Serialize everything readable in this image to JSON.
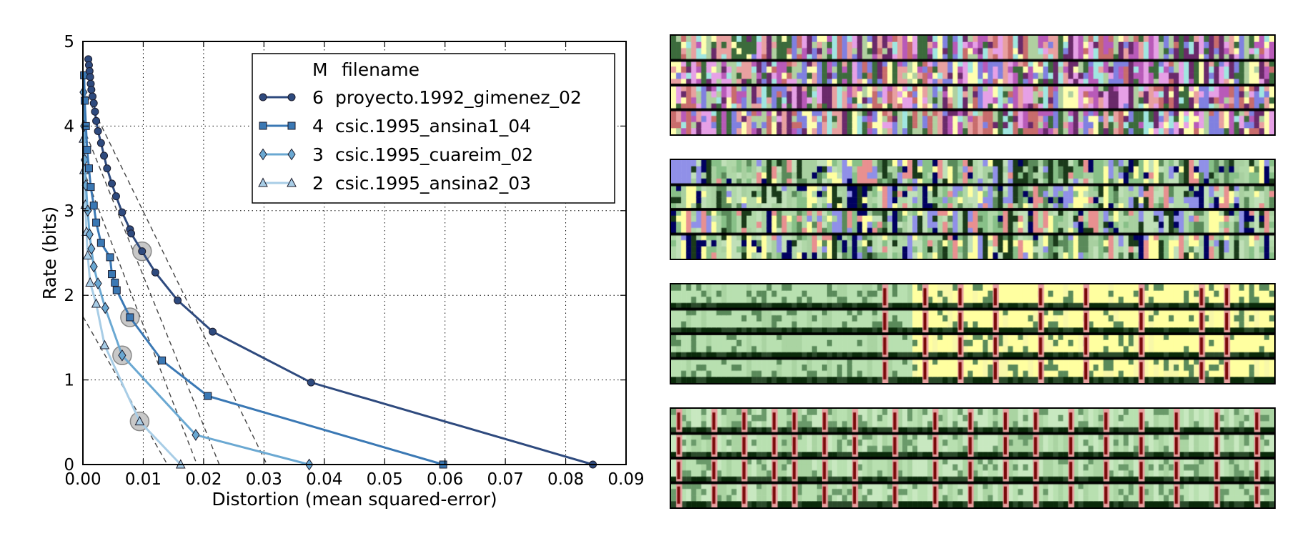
{
  "chart_data": {
    "type": "line",
    "xlabel": "Distortion (mean squared-error)",
    "ylabel": "Rate (bits)",
    "xlim": [
      0,
      0.09
    ],
    "ylim": [
      0,
      5
    ],
    "xticks": [
      "0.00",
      "0.01",
      "0.02",
      "0.03",
      "0.04",
      "0.05",
      "0.06",
      "0.07",
      "0.08",
      "0.09"
    ],
    "yticks": [
      "0",
      "1",
      "2",
      "3",
      "4",
      "5"
    ],
    "grid": true,
    "legend": {
      "placement": "top-right",
      "header_m": "M",
      "header_name": "filename"
    },
    "series": [
      {
        "name": "proyecto.1992_gimenez_02",
        "m": "6",
        "marker": "circle",
        "color": "#2e4a7e",
        "points": [
          [
            0.0009,
            4.79
          ],
          [
            0.001,
            4.72
          ],
          [
            0.0011,
            4.65
          ],
          [
            0.0012,
            4.58
          ],
          [
            0.0013,
            4.5
          ],
          [
            0.0014,
            4.43
          ],
          [
            0.0016,
            4.35
          ],
          [
            0.0018,
            4.27
          ],
          [
            0.002,
            4.17
          ],
          [
            0.0022,
            4.06
          ],
          [
            0.0025,
            3.94
          ],
          [
            0.003,
            3.8
          ],
          [
            0.0035,
            3.65
          ],
          [
            0.004,
            3.5
          ],
          [
            0.0048,
            3.32
          ],
          [
            0.0055,
            3.17
          ],
          [
            0.0065,
            2.98
          ],
          [
            0.0078,
            2.78
          ],
          [
            0.008,
            2.73
          ],
          [
            0.0098,
            2.52
          ],
          [
            0.012,
            2.27
          ],
          [
            0.0157,
            1.94
          ],
          [
            0.0215,
            1.57
          ],
          [
            0.0378,
            0.97
          ],
          [
            0.0845,
            0.0
          ]
        ]
      },
      {
        "name": "csic.1995_ansina1_04",
        "m": "4",
        "marker": "square",
        "color": "#3a78b4",
        "points": [
          [
            0.0002,
            4.6
          ],
          [
            0.0003,
            4.3
          ],
          [
            0.0005,
            4.0
          ],
          [
            0.0007,
            3.72
          ],
          [
            0.001,
            3.5
          ],
          [
            0.0013,
            3.28
          ],
          [
            0.0018,
            3.06
          ],
          [
            0.0022,
            2.86
          ],
          [
            0.003,
            2.62
          ],
          [
            0.0045,
            2.45
          ],
          [
            0.0048,
            2.25
          ],
          [
            0.0053,
            2.15
          ],
          [
            0.0056,
            2.06
          ],
          [
            0.0078,
            1.74
          ],
          [
            0.0131,
            1.23
          ],
          [
            0.0207,
            0.81
          ],
          [
            0.0597,
            0.0
          ]
        ]
      },
      {
        "name": "csic.1995_cuareim_02",
        "m": "3",
        "marker": "diamond",
        "color": "#6aa8d2",
        "points": [
          [
            0.0001,
            4.4
          ],
          [
            0.0002,
            4.0
          ],
          [
            0.0003,
            3.6
          ],
          [
            0.0005,
            3.3
          ],
          [
            0.0008,
            3.0
          ],
          [
            0.0011,
            2.72
          ],
          [
            0.0014,
            2.55
          ],
          [
            0.0018,
            2.34
          ],
          [
            0.0025,
            2.14
          ],
          [
            0.0037,
            1.85
          ],
          [
            0.0065,
            1.29
          ],
          [
            0.0187,
            0.35
          ],
          [
            0.0375,
            0.0
          ]
        ]
      },
      {
        "name": "csic.1995_ansina2_03",
        "m": "2",
        "marker": "triangle",
        "color": "#a8cde6",
        "points": [
          [
            0.0001,
            3.85
          ],
          [
            0.0002,
            3.48
          ],
          [
            0.0004,
            3.07
          ],
          [
            0.0006,
            2.75
          ],
          [
            0.0008,
            2.47
          ],
          [
            0.0012,
            2.15
          ],
          [
            0.0022,
            1.9
          ],
          [
            0.0036,
            1.41
          ],
          [
            0.0094,
            0.51
          ],
          [
            0.0162,
            0.0
          ]
        ]
      }
    ],
    "highlighted_points": [
      [
        0.0098,
        2.52
      ],
      [
        0.0078,
        1.74
      ],
      [
        0.0065,
        1.29
      ],
      [
        0.0094,
        0.51
      ]
    ],
    "tangent_lines": [
      [
        [
          0.0,
          4.45
        ],
        [
          0.0305,
          0.0
        ]
      ],
      [
        [
          0.0,
          4.0
        ],
        [
          0.0226,
          0.0
        ]
      ],
      [
        [
          0.0,
          3.5
        ],
        [
          0.0189,
          0.0
        ]
      ],
      [
        [
          0.0,
          1.75
        ],
        [
          0.014,
          0.0
        ]
      ]
    ]
  },
  "panels": [
    {
      "palette": [
        "#e6a0e6",
        "#b85ab8",
        "#e8a0a0",
        "#c86c6c",
        "#a0e6e0",
        "#ffffb0",
        "#3c6b3c",
        "#6a2a6a",
        "#b0d0a0",
        "#8080e0"
      ]
    },
    {
      "palette": [
        "#b0d8a8",
        "#a8d0a0",
        "#c0e0b8",
        "#ffffa0",
        "#9090e8",
        "#1a3a1a",
        "#000060",
        "#e89090",
        "#5a8a5a",
        "#88c088"
      ]
    },
    {
      "palette": [
        "#b8e0b0",
        "#aad4a2",
        "#c8e8c0",
        "#5a8a5a",
        "#ffffa0",
        "#f8f8a8",
        "#e89090",
        "#800000"
      ]
    },
    {
      "palette": [
        "#b8e0b0",
        "#aad4a2",
        "#c8e8c0",
        "#6a9a6a",
        "#e89090",
        "#800000"
      ]
    }
  ]
}
